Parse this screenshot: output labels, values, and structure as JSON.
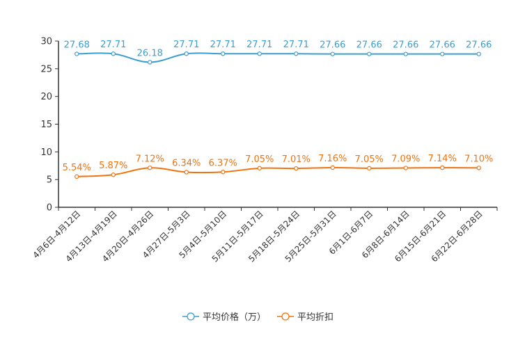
{
  "chart_data": {
    "type": "line",
    "categories": [
      "4月6日-4月12日",
      "4月13日-4月19日",
      "4月20日-4月26日",
      "4月27日-5月3日",
      "5月4日-5月10日",
      "5月11日-5月17日",
      "5月18日-5月24日",
      "5月25日-5月31日",
      "6月1日-6月7日",
      "6月8日-6月14日",
      "6月15日-6月21日",
      "6月22日-6月28日"
    ],
    "series": [
      {
        "name": "平均价格（万）",
        "color": "#3a9fd0",
        "values": [
          27.68,
          27.71,
          26.18,
          27.71,
          27.71,
          27.71,
          27.71,
          27.66,
          27.66,
          27.66,
          27.66,
          27.66
        ],
        "labels": [
          "27.68",
          "27.71",
          "26.18",
          "27.71",
          "27.71",
          "27.71",
          "27.71",
          "27.66",
          "27.66",
          "27.66",
          "27.66",
          "27.66"
        ]
      },
      {
        "name": "平均折扣",
        "color": "#f0720e",
        "values": [
          5.54,
          5.87,
          7.12,
          6.34,
          6.37,
          7.05,
          7.01,
          7.16,
          7.05,
          7.09,
          7.14,
          7.1
        ],
        "labels": [
          "5.54%",
          "5.87%",
          "7.12%",
          "6.34%",
          "6.37%",
          "7.05%",
          "7.01%",
          "7.16%",
          "7.05%",
          "7.09%",
          "7.14%",
          "7.10%"
        ]
      }
    ],
    "ylim": [
      0,
      30
    ],
    "yticks": [
      "0",
      "5",
      "10",
      "15",
      "20",
      "25",
      "30"
    ],
    "ytick_values": [
      0,
      5,
      10,
      15,
      20,
      25,
      30
    ],
    "legend_position": "bottom-center",
    "grid": false,
    "axis_color": "#333333"
  }
}
